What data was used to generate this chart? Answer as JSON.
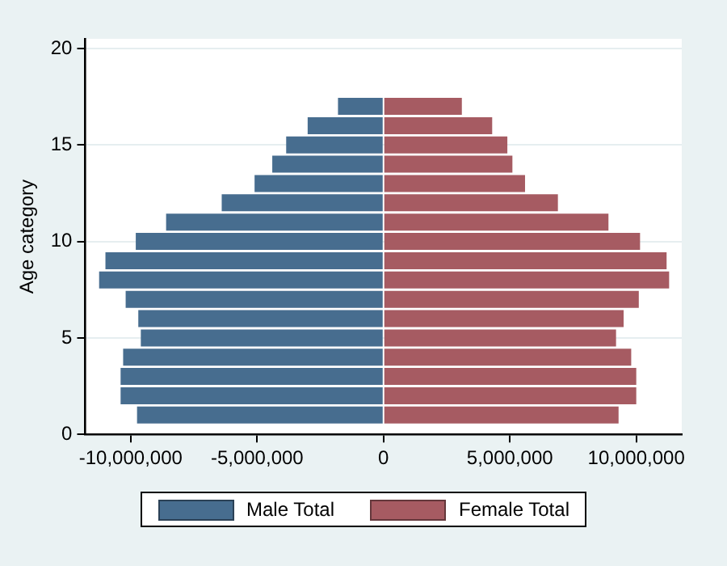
{
  "chart_data": {
    "type": "bar",
    "orientation": "horizontal",
    "stacked": true,
    "ylabel": "Age category",
    "x": [
      1,
      2,
      3,
      4,
      5,
      6,
      7,
      8,
      9,
      10,
      11,
      12,
      13,
      14,
      15,
      16,
      17
    ],
    "series": [
      {
        "name": "Male Total",
        "color": "#476d8f",
        "values": [
          -9750000,
          -10400000,
          -10400000,
          -10300000,
          -9600000,
          -9700000,
          -10200000,
          -11250000,
          -11000000,
          -9800000,
          -8600000,
          -6400000,
          -5100000,
          -4400000,
          -3850000,
          -3000000,
          -1800000
        ]
      },
      {
        "name": "Female Total",
        "color": "#a65b62",
        "values": [
          9300000,
          10000000,
          10000000,
          9800000,
          9200000,
          9500000,
          10100000,
          11300000,
          11200000,
          10150000,
          8900000,
          6900000,
          5600000,
          5100000,
          4900000,
          4300000,
          3100000
        ]
      }
    ],
    "xlim": [
      -11800000,
      11800000
    ],
    "xticks": [
      {
        "value": -10000000,
        "label": "-10,000,000"
      },
      {
        "value": -5000000,
        "label": "-5,000,000"
      },
      0,
      {
        "value": 5000000,
        "label": "5,000,000"
      },
      {
        "value": 10000000,
        "label": "10,000,000"
      }
    ],
    "ylim": [
      0,
      20.5
    ],
    "yticks": [
      0,
      5,
      10,
      15,
      20
    ],
    "grid": "y",
    "legend": "bottom"
  }
}
